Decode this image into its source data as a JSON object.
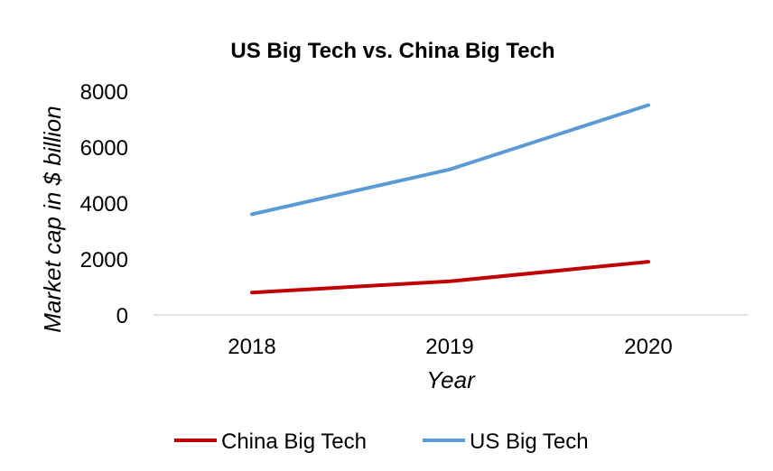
{
  "chart_data": {
    "type": "line",
    "title": "US Big Tech vs. China Big Tech",
    "xlabel": "Year",
    "ylabel": "Market cap in $ billion",
    "categories": [
      "2018",
      "2019",
      "2020"
    ],
    "series": [
      {
        "name": "China Big Tech",
        "values": [
          800,
          1200,
          1900
        ],
        "color": "#c00000"
      },
      {
        "name": "US Big Tech",
        "values": [
          3600,
          5200,
          7500
        ],
        "color": "#5b9bd5"
      }
    ],
    "ylim": [
      0,
      8000
    ],
    "yticks": [
      "0",
      "2000",
      "4000",
      "6000",
      "8000"
    ],
    "grid": false,
    "legend_position": "bottom"
  }
}
